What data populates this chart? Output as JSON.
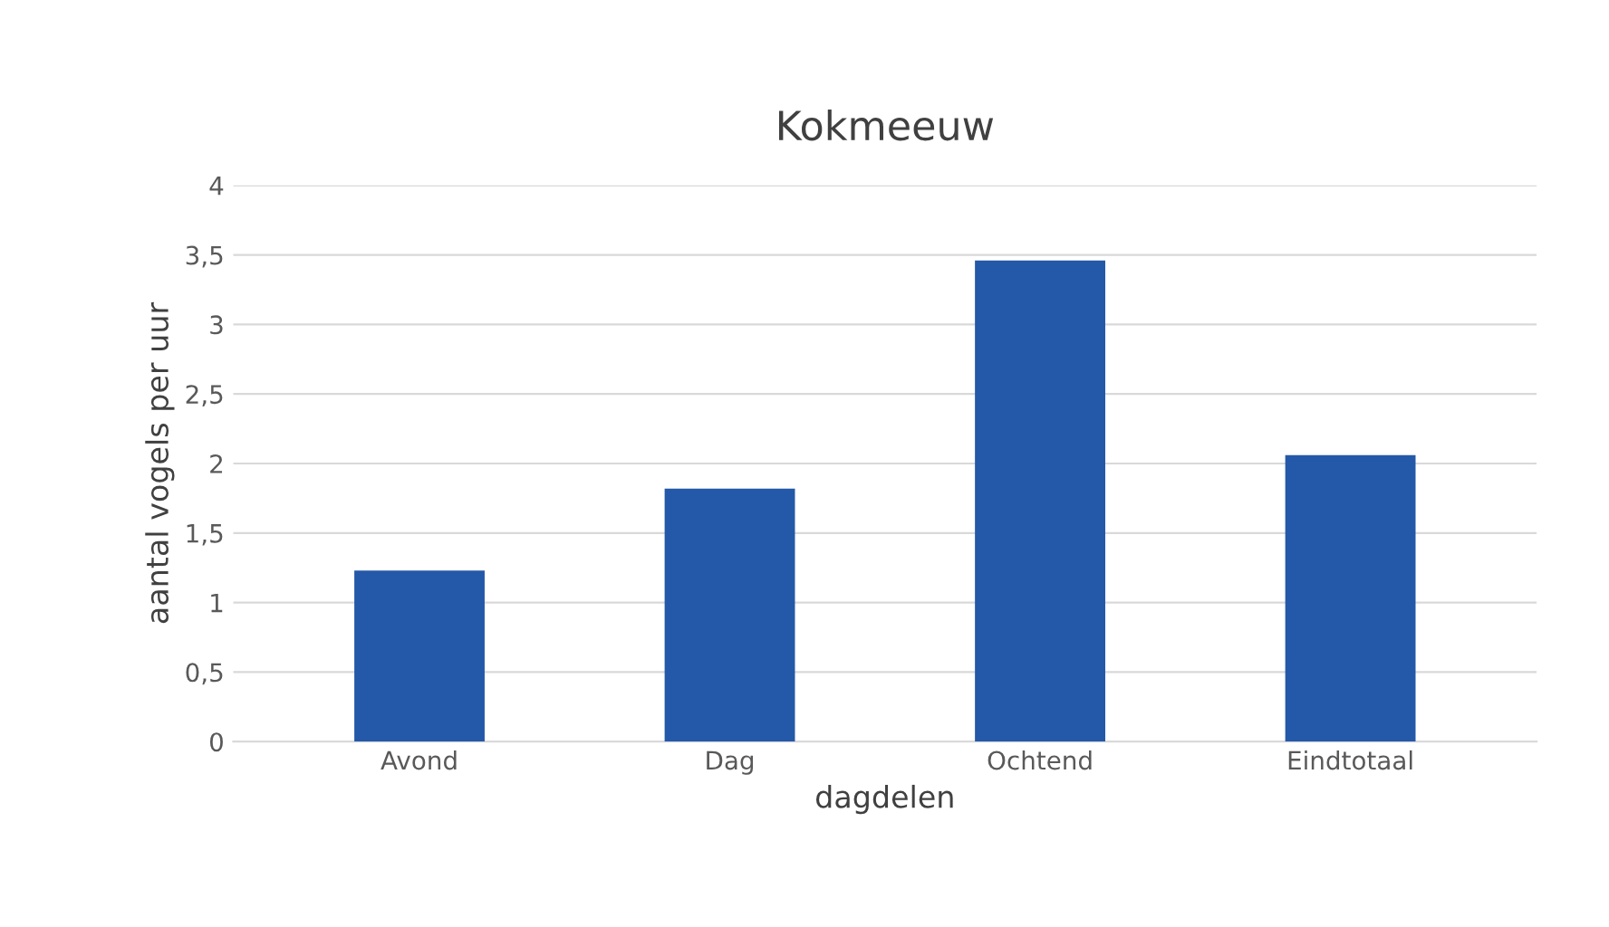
{
  "chart_data": {
    "type": "bar",
    "title": "Kokmeeuw",
    "xlabel": "dagdelen",
    "ylabel": "aantal vogels per uur",
    "categories": [
      "Avond",
      "Dag",
      "Ochtend",
      "Eindtotaal"
    ],
    "values": [
      1.23,
      1.82,
      3.46,
      2.06
    ],
    "color": "#2458a8",
    "ylim": [
      0,
      4
    ],
    "yticks": [
      0,
      {
        "value": 0.5,
        "label": "0,5"
      },
      1,
      {
        "value": 1.5,
        "label": "1,5"
      },
      2,
      {
        "value": 2.5,
        "label": "2,5"
      },
      3,
      {
        "value": 3.5,
        "label": "3,5"
      },
      4
    ],
    "grid": "y"
  }
}
